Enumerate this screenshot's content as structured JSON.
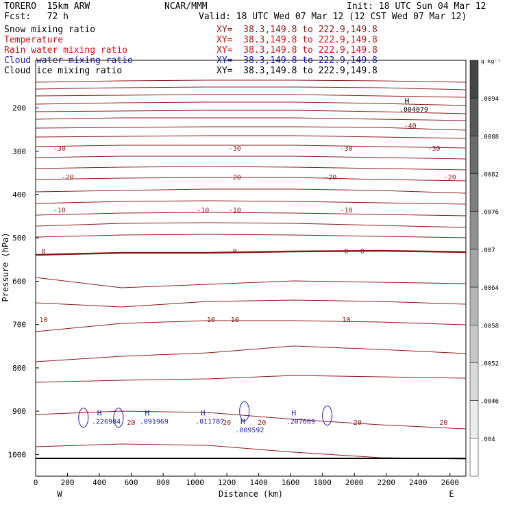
{
  "header": {
    "model": "TORERO  15km ARW",
    "center": "NCAR/MMM",
    "init": "Init: 18 UTC Sun 04 Mar 12",
    "fcst": "Fcst:   72 h",
    "valid": "Valid: 18 UTC Wed 07 Mar 12 (12 CST Wed 07 Mar 12)"
  },
  "fields": [
    {
      "name": "Snow mixing ratio",
      "xy": "XY=  38.3,149.8 to 222.9,149.8",
      "color": "#000000"
    },
    {
      "name": "Temperature",
      "xy": "XY=  38.3,149.8 to 222.9,149.8",
      "color": "#cc1111"
    },
    {
      "name": "Rain water mixing ratio",
      "xy": "XY=  38.3,149.8 to 222.9,149.8",
      "color": "#cc1111"
    },
    {
      "name": "Cloud water mixing ratio",
      "xy": "XY=  38.3,149.8 to 222.9,149.8",
      "color": "#1a1ab4"
    },
    {
      "name": "Cloud ice mixing ratio",
      "xy": "XY=  38.3,149.8 to 222.9,149.8",
      "color": "#000000"
    }
  ],
  "chart_data": {
    "type": "cross-section contour",
    "xlabel": "Distance (km)",
    "ylabel": "Pressure (hPa)",
    "x_ticks": [
      0,
      200,
      400,
      600,
      800,
      1000,
      1200,
      1400,
      1600,
      1800,
      2000,
      2200,
      2400,
      2600
    ],
    "y_ticks": [
      200,
      300,
      400,
      500,
      600,
      700,
      800,
      900,
      1000
    ],
    "xlim": [
      0,
      2700
    ],
    "ylim": [
      1050,
      90
    ],
    "left_end": "W",
    "right_end": "E",
    "temperature_contours": [
      {
        "level": -40,
        "labels_at": [
          2350
        ]
      },
      {
        "level": -30,
        "labels_at": [
          150,
          1250,
          1950,
          2500
        ]
      },
      {
        "level": -20,
        "labels_at": [
          200,
          1250,
          1850,
          2600
        ]
      },
      {
        "level": -10,
        "labels_at": [
          150,
          1050,
          1250,
          1950
        ]
      },
      {
        "level": 0,
        "labels_at": [
          50,
          1250,
          1950,
          2050
        ]
      },
      {
        "level": 10,
        "labels_at": [
          50,
          1100,
          1250,
          1950
        ]
      },
      {
        "level": 20,
        "labels_at": [
          600,
          1200,
          1420,
          2020,
          2560
        ]
      }
    ],
    "maxima": [
      {
        "label": "H",
        "value": ".004079",
        "x": 2330,
        "p": 190
      },
      {
        "label": "H",
        "value": ".226904",
        "x": 400,
        "p": 910
      },
      {
        "label": "H",
        "value": ".091969",
        "x": 700,
        "p": 910
      },
      {
        "label": "H",
        "value": ".011787",
        "x": 1050,
        "p": 910
      },
      {
        "label": "H",
        "value": ".009592",
        "x": 1300,
        "p": 930
      },
      {
        "label": "H",
        "value": ".207669",
        "x": 1620,
        "p": 910
      }
    ],
    "colorbar": {
      "unit": "g kg⁻¹",
      "labels": [
        ".0094",
        ".0088",
        ".0082",
        ".0076",
        ".007",
        ".0064",
        ".0058",
        ".0052",
        ".0046",
        ".004"
      ]
    }
  }
}
